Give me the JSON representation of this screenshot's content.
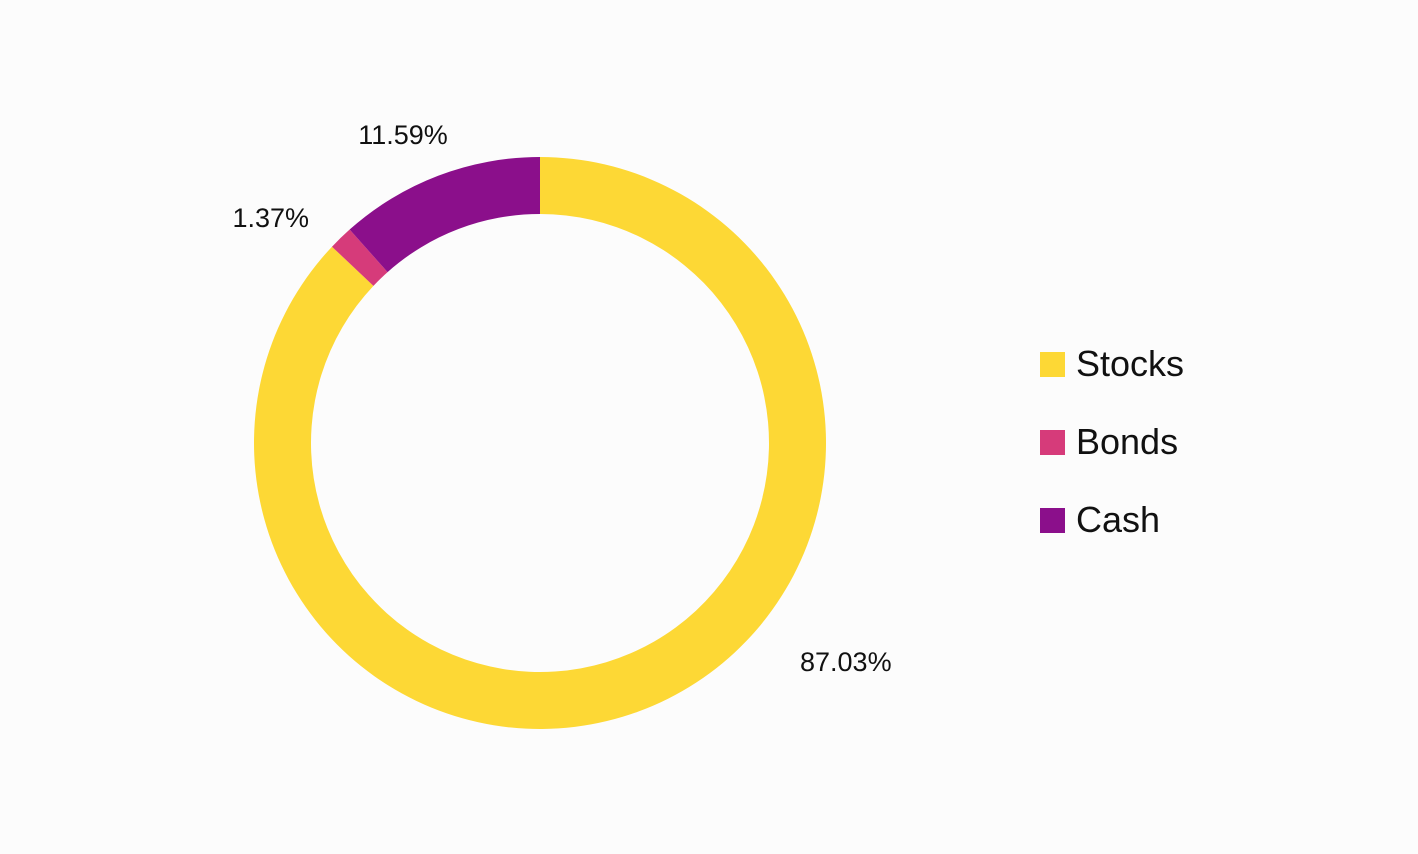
{
  "chart_data": {
    "type": "pie",
    "variant": "donut",
    "title": "",
    "series": [
      {
        "name": "Stocks",
        "value": 87.03,
        "label": "87.03%",
        "color": "#fdd835"
      },
      {
        "name": "Bonds",
        "value": 1.37,
        "label": "1.37%",
        "color": "#d63b7a"
      },
      {
        "name": "Cash",
        "value": 11.59,
        "label": "11.59%",
        "color": "#8b0f8b"
      }
    ],
    "legend": {
      "placement": "right",
      "entries": [
        "Stocks",
        "Bonds",
        "Cash"
      ]
    },
    "start_angle_degrees": 0,
    "direction": "clockwise",
    "grid": false
  }
}
